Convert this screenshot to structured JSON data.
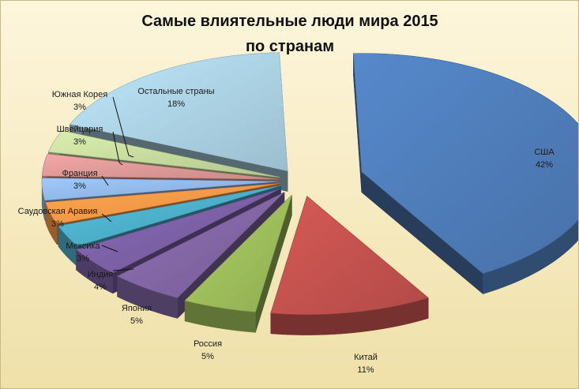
{
  "chart_data": {
    "type": "pie",
    "title": "Самые влиятельные люди мира 2015",
    "subtitle": "по странам",
    "slices": [
      {
        "label": "США",
        "value": 42,
        "display": "42%",
        "color": "#4d7ab5"
      },
      {
        "label": "Китай",
        "value": 11,
        "display": "11%",
        "color": "#c0504d"
      },
      {
        "label": "Россия",
        "value": 5,
        "display": "5%",
        "color": "#9bbb59"
      },
      {
        "label": "Япония",
        "value": 5,
        "display": "5%",
        "color": "#8064a2"
      },
      {
        "label": "Индия",
        "value": 4,
        "display": "4%",
        "color": "#7a5fa3"
      },
      {
        "label": "Мексика",
        "value": 3,
        "display": "3%",
        "color": "#4bacc6"
      },
      {
        "label": "Саудовская Аравия",
        "value": 3,
        "display": "3%",
        "color": "#f79646"
      },
      {
        "label": "Франция",
        "value": 3,
        "display": "3%",
        "color": "#8eb4e3"
      },
      {
        "label": "Швейцария",
        "value": 3,
        "display": "3%",
        "color": "#d99694"
      },
      {
        "label": "Южная Корея",
        "value": 3,
        "display": "3%",
        "color": "#c3d69b"
      },
      {
        "label": "Остальные страны",
        "value": 18,
        "display": "18%",
        "color": "#a9cfe0"
      }
    ]
  }
}
